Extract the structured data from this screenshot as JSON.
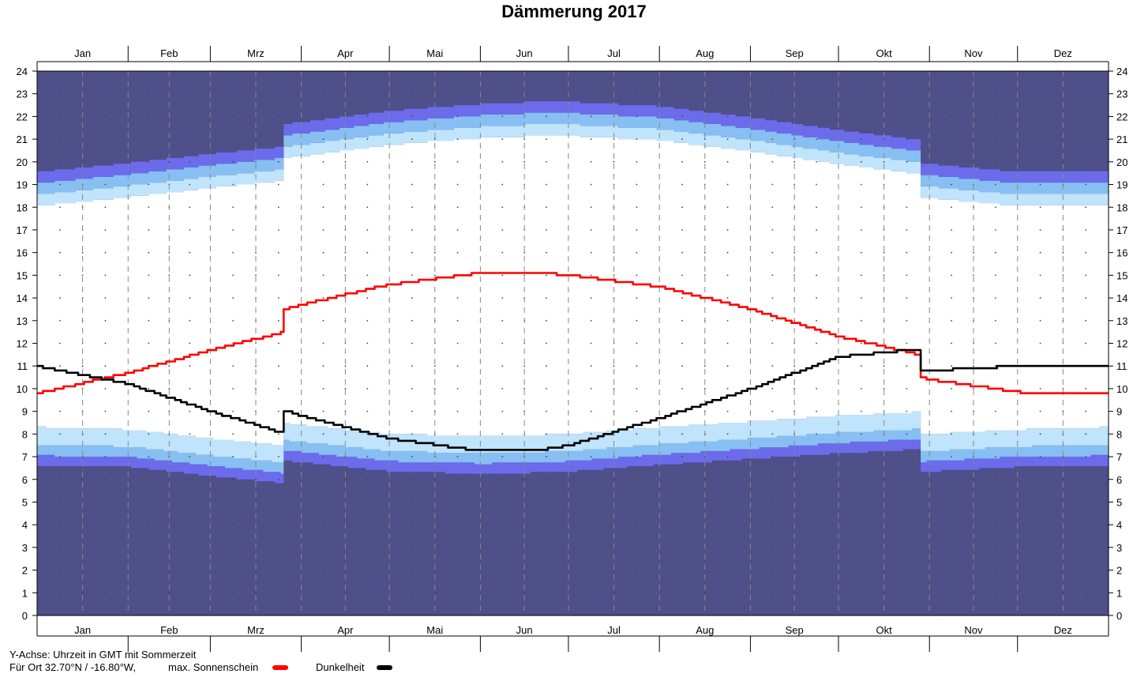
{
  "chart_data": {
    "type": "area",
    "title": "Dämmerung 2017",
    "months": [
      "Jan",
      "Feb",
      "Mrz",
      "Apr",
      "Mai",
      "Jun",
      "Jul",
      "Aug",
      "Sep",
      "Okt",
      "Nov",
      "Dez"
    ],
    "month_lengths": [
      31,
      28,
      31,
      30,
      31,
      30,
      31,
      31,
      30,
      31,
      30,
      31
    ],
    "ylim": [
      0,
      24
    ],
    "yticks": [
      "0",
      "1",
      "2",
      "3",
      "4",
      "5",
      "6",
      "7",
      "8",
      "9",
      "10",
      "11",
      "12",
      "13",
      "14",
      "15",
      "16",
      "17",
      "18",
      "19",
      "20",
      "21",
      "22",
      "23",
      "24"
    ],
    "grid": true,
    "dst_period": {
      "start_day": 85,
      "end_day": 302
    },
    "morning_gmt": {
      "days": [
        1,
        32,
        60,
        91,
        121,
        152,
        172,
        182,
        213,
        244,
        274,
        305,
        335,
        365
      ],
      "night_end": [
        6.6,
        6.55,
        6.15,
        5.75,
        5.35,
        5.25,
        5.3,
        5.35,
        5.65,
        5.9,
        6.15,
        6.35,
        6.55,
        6.6
      ],
      "astro_end": [
        7.05,
        7.0,
        6.6,
        6.2,
        5.8,
        5.7,
        5.75,
        5.8,
        6.1,
        6.35,
        6.6,
        6.8,
        7.0,
        7.05
      ],
      "nautical_end": [
        7.5,
        7.45,
        7.05,
        6.65,
        6.25,
        6.15,
        6.2,
        6.25,
        6.55,
        6.8,
        7.05,
        7.25,
        7.45,
        7.5
      ],
      "civil_end": [
        8.3,
        8.2,
        7.8,
        7.4,
        7.0,
        6.9,
        6.95,
        7.0,
        7.3,
        7.55,
        7.8,
        8.0,
        8.2,
        8.3
      ]
    },
    "evening_gmt": {
      "days": [
        1,
        32,
        60,
        91,
        121,
        152,
        172,
        182,
        213,
        244,
        274,
        305,
        335,
        365
      ],
      "civil_start": [
        18.05,
        18.45,
        18.85,
        19.25,
        19.75,
        20.05,
        20.15,
        20.15,
        19.95,
        19.45,
        18.9,
        18.4,
        18.05,
        18.05
      ],
      "nautical_start": [
        18.55,
        18.95,
        19.35,
        19.75,
        20.25,
        20.55,
        20.65,
        20.65,
        20.45,
        19.95,
        19.4,
        18.9,
        18.55,
        18.55
      ],
      "astro_start": [
        19.05,
        19.45,
        19.85,
        20.25,
        20.75,
        21.05,
        21.15,
        21.15,
        20.95,
        20.45,
        19.9,
        19.4,
        19.05,
        19.05
      ],
      "night_start": [
        19.55,
        19.95,
        20.35,
        20.75,
        21.25,
        21.55,
        21.65,
        21.65,
        21.45,
        20.95,
        20.4,
        19.9,
        19.55,
        19.55
      ]
    },
    "series": [
      {
        "name": "max. Sonnenschein",
        "color": "#ff0000",
        "days": [
          1,
          32,
          60,
          91,
          121,
          152,
          172,
          182,
          213,
          244,
          274,
          305,
          335,
          365
        ],
        "values": [
          9.8,
          10.7,
          11.7,
          12.7,
          13.6,
          14.1,
          14.1,
          14.0,
          13.5,
          12.5,
          11.3,
          10.4,
          9.85,
          9.8
        ]
      },
      {
        "name": "Dunkelheit",
        "color": "#000000",
        "days": [
          1,
          32,
          60,
          91,
          121,
          152,
          172,
          182,
          213,
          244,
          274,
          305,
          335,
          365
        ],
        "values": [
          11.0,
          10.2,
          9.0,
          7.8,
          6.8,
          6.25,
          6.3,
          6.5,
          7.7,
          9.0,
          10.4,
          10.8,
          11.0,
          11.0
        ]
      }
    ],
    "colors": {
      "night": "#4f4f8a",
      "astronomical": "#6b6bec",
      "nautical": "#87bff2",
      "civil": "#bfe4fb",
      "day": "#ffffff"
    }
  },
  "footer": {
    "yaxis_note": "Y-Achse: Uhrzeit in GMT mit Sommerzeit",
    "location": "Für Ort 32.70°N / -16.80°W,",
    "legend_sun": "max. Sonnenschein",
    "legend_dark": "Dunkelheit"
  }
}
